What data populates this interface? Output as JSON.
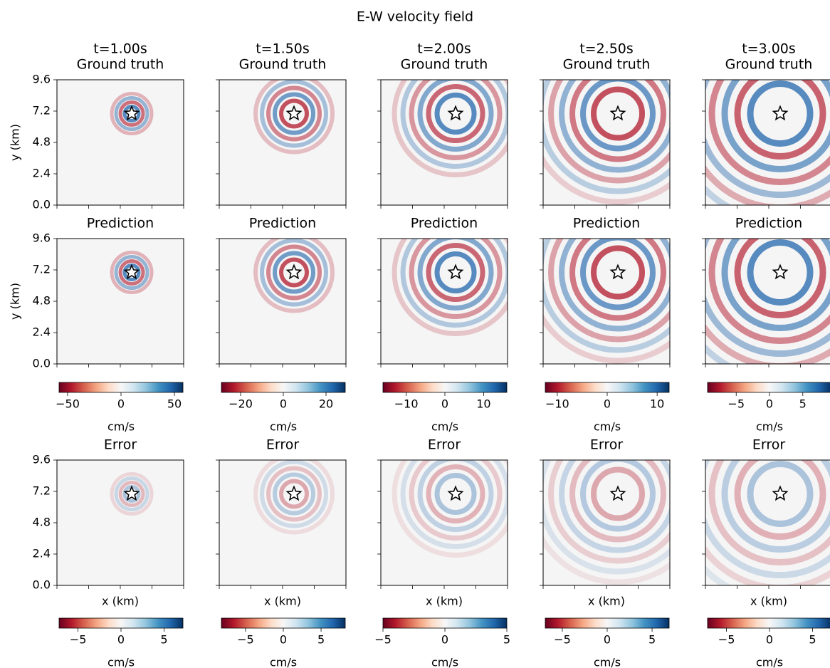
{
  "figure": {
    "title": "E-W velocity field",
    "row_titles": [
      "Ground truth",
      "Prediction",
      "Error"
    ],
    "x_label": "x (km)",
    "y_label": "y (km)",
    "ylim": [
      0,
      9.6
    ],
    "yticks": [
      {
        "value": 0,
        "label": "0.0"
      },
      2.4,
      4.8,
      7.2,
      9.6
    ],
    "colormap": "RdBu",
    "colorbar_label": "cm/s",
    "columns": [
      {
        "time": "t=1.00s",
        "field_colorbar": {
          "lim": [
            -58,
            58
          ],
          "ticks": [
            {
              "value": -50,
              "label": "−50"
            },
            0,
            50
          ]
        },
        "error_colorbar": {
          "lim": [
            -7.2,
            7.2
          ],
          "ticks": [
            {
              "value": -5,
              "label": "−5"
            },
            0,
            5
          ]
        }
      },
      {
        "time": "t=1.50s",
        "field_colorbar": {
          "lim": [
            -29,
            29
          ],
          "ticks": [
            {
              "value": -20,
              "label": "−20"
            },
            0,
            20
          ]
        },
        "error_colorbar": {
          "lim": [
            -8.2,
            8.2
          ],
          "ticks": [
            {
              "value": -5,
              "label": "−5"
            },
            0,
            5
          ]
        }
      },
      {
        "time": "t=2.00s",
        "field_colorbar": {
          "lim": [
            -16,
            16
          ],
          "ticks": [
            {
              "value": -10,
              "label": "−10"
            },
            0,
            10
          ]
        },
        "error_colorbar": {
          "lim": [
            -5,
            5
          ],
          "ticks": [
            {
              "value": -5,
              "label": "−5"
            },
            0,
            5
          ]
        }
      },
      {
        "time": "t=2.50s",
        "field_colorbar": {
          "lim": [
            -12.4,
            12.4
          ],
          "ticks": [
            {
              "value": -10,
              "label": "−10"
            },
            0,
            10
          ]
        },
        "error_colorbar": {
          "lim": [
            -6.9,
            6.9
          ],
          "ticks": [
            {
              "value": -5,
              "label": "−5"
            },
            0,
            5
          ]
        }
      },
      {
        "time": "t=3.00s",
        "field_colorbar": {
          "lim": [
            -9.3,
            9.3
          ],
          "ticks": [
            {
              "value": -5,
              "label": "−5"
            },
            0,
            5
          ]
        },
        "error_colorbar": {
          "lim": [
            -7.2,
            7.2
          ],
          "ticks": [
            {
              "value": -5,
              "label": "−5"
            },
            0,
            5
          ]
        }
      }
    ]
  }
}
